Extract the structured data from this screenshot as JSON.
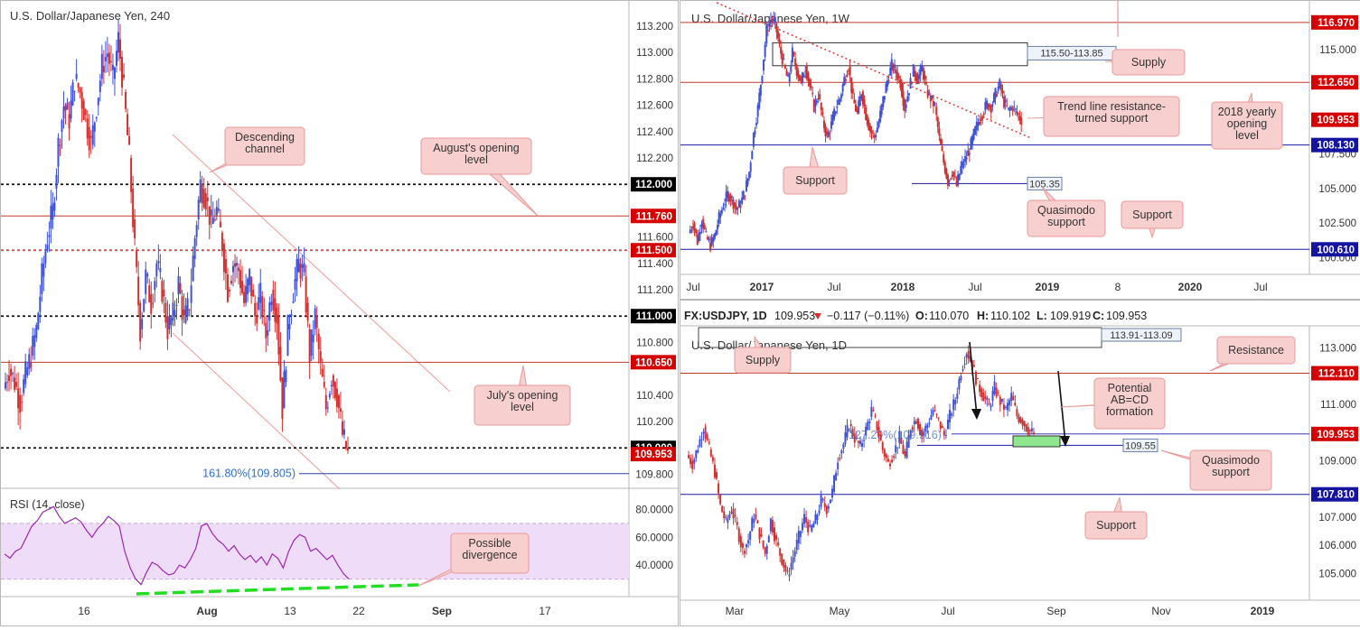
{
  "colors": {
    "bull": "#3f51d8",
    "bear": "#d32f2f",
    "black_label": "#000000",
    "red_label": "#d50000",
    "blue_label": "#1414a0",
    "callout_fill": "#f7cfcf",
    "callout_border": "#e89a9a",
    "rsi_band": "#efdcf8",
    "rsi_line": "#9c27b0",
    "divergence": "#22dd22",
    "zone_green": "#8ee68e"
  },
  "chart_data": [
    {
      "id": "usdjpy-h4",
      "type": "candlestick",
      "title": "U.S. Dollar/Japanese Yen, 240",
      "x_tick_labels": [
        "16",
        "Aug",
        "13",
        "22",
        "Sep",
        "17"
      ],
      "y_tick_labels": [
        "113.200",
        "113.000",
        "112.800",
        "112.600",
        "112.400",
        "112.200",
        "111.600",
        "111.400",
        "111.200",
        "110.800",
        "110.400",
        "110.200",
        "109.800"
      ],
      "ylim": [
        109.8,
        113.2
      ],
      "price_levels": [
        {
          "value": 112.0,
          "label": "112.000",
          "style": "black-dotted"
        },
        {
          "value": 111.76,
          "label": "111.760",
          "style": "red-solid"
        },
        {
          "value": 111.5,
          "label": "111.500",
          "style": "red-dotted"
        },
        {
          "value": 111.0,
          "label": "111.000",
          "style": "black-dotted"
        },
        {
          "value": 110.65,
          "label": "110.650",
          "style": "red-solid"
        },
        {
          "value": 110.0,
          "label": "110.000",
          "style": "black-dotted"
        },
        {
          "value": 109.953,
          "label": "109.953",
          "style": "last-price"
        }
      ],
      "fib_label": "161.80%(109.805)",
      "fib_value": 109.805,
      "annotations": [
        "Descending channel",
        "August's opening level",
        "July's opening level"
      ],
      "close_path": [
        110.45,
        110.6,
        110.5,
        110.35,
        110.55,
        110.7,
        110.9,
        111.3,
        111.6,
        111.8,
        112.3,
        112.6,
        112.5,
        112.8,
        112.7,
        112.5,
        112.3,
        112.6,
        112.9,
        113.0,
        112.8,
        113.1,
        112.7,
        112.2,
        111.5,
        110.9,
        111.3,
        111.1,
        111.4,
        111.2,
        110.9,
        111.0,
        111.25,
        110.95,
        111.1,
        111.6,
        112.0,
        111.9,
        111.7,
        111.8,
        111.55,
        111.2,
        111.4,
        111.35,
        111.1,
        111.3,
        111.0,
        111.15,
        110.85,
        111.2,
        111.0,
        110.3,
        110.9,
        111.2,
        111.4,
        111.3,
        110.7,
        111.0,
        110.6,
        110.3,
        110.55,
        110.4,
        110.1,
        109.95
      ],
      "rsi": {
        "label": "RSI (14, close)",
        "ylim": [
          20,
          90
        ],
        "y_tick_labels": [
          "80.0000",
          "60.0000",
          "40.0000"
        ],
        "overbought": 70,
        "oversold": 30,
        "values": [
          48,
          45,
          50,
          52,
          60,
          68,
          72,
          78,
          80,
          82,
          75,
          70,
          72,
          74,
          71,
          65,
          60,
          66,
          70,
          75,
          72,
          68,
          50,
          38,
          30,
          26,
          35,
          42,
          40,
          36,
          33,
          34,
          40,
          38,
          44,
          52,
          68,
          70,
          63,
          58,
          55,
          50,
          54,
          48,
          44,
          47,
          42,
          46,
          40,
          48,
          45,
          38,
          50,
          58,
          62,
          60,
          50,
          52,
          48,
          44,
          47,
          40,
          34,
          30
        ]
      },
      "rsi_annotation": "Possible divergence"
    },
    {
      "id": "usdjpy-weekly",
      "type": "candlestick",
      "title": "U.S. Dollar/Japanese Yen, 1W",
      "x_tick_labels": [
        "Jul",
        "2017",
        "Jul",
        "2018",
        "Jul",
        "2019",
        "8",
        "2020",
        "Jul"
      ],
      "y_tick_labels": [
        "115.000",
        "112.500",
        "107.500",
        "105.000",
        "102.500",
        "100.000"
      ],
      "ylim": [
        99,
        118
      ],
      "price_levels": [
        {
          "value": 116.97,
          "label": "116.970",
          "style": "red-solid"
        },
        {
          "value": 112.65,
          "label": "112.650",
          "style": "red-solid"
        },
        {
          "value": 109.953,
          "label": "109.953",
          "style": "last-price"
        },
        {
          "value": 108.13,
          "label": "108.130",
          "style": "blue-solid"
        },
        {
          "value": 100.61,
          "label": "100.610",
          "style": "blue-solid"
        }
      ],
      "zone_label": "115.50-113.85",
      "zone": [
        113.85,
        115.5
      ],
      "level_105_label": "105.35",
      "annotations": [
        "Supply",
        "Trend line resistance-turned support",
        "2018 yearly opening level",
        "Support",
        "Quasimodo support",
        "Support"
      ],
      "close_path": [
        101.8,
        102.5,
        101.2,
        102.8,
        101.5,
        100.9,
        101.6,
        102.9,
        103.8,
        104.6,
        104.2,
        103.5,
        103.9,
        104.8,
        106.2,
        108.9,
        110.8,
        113.5,
        116.4,
        117.2,
        116.9,
        115.2,
        113.9,
        112.7,
        114.8,
        113.5,
        112.6,
        113.8,
        112.4,
        110.9,
        111.8,
        109.9,
        108.7,
        109.6,
        110.8,
        111.5,
        112.9,
        113.8,
        111.4,
        110.4,
        112.0,
        110.3,
        109.2,
        108.7,
        109.8,
        111.4,
        112.8,
        113.9,
        113.4,
        112.6,
        110.8,
        112.2,
        113.5,
        112.9,
        113.7,
        112.1,
        111.5,
        110.9,
        108.6,
        106.9,
        105.5,
        106.2,
        105.2,
        106.5,
        107.1,
        107.8,
        108.9,
        109.8,
        110.4,
        111.1,
        110.9,
        111.8,
        112.5,
        111.2,
        110.6,
        110.9,
        110.4,
        109.95
      ]
    },
    {
      "id": "usdjpy-daily",
      "type": "candlestick",
      "title": "U.S. Dollar/Japanese Yen, 1D",
      "header": "FX:USDJPY, 1D",
      "ohlc": {
        "last": "109.953",
        "change": "−0.117 (−0.11%)",
        "O": "110.070",
        "H": "110.102",
        "L": "109.919",
        "C": "109.953"
      },
      "x_tick_labels": [
        "Mar",
        "May",
        "Jul",
        "Sep",
        "Nov",
        "2019"
      ],
      "y_tick_labels": [
        "113.000",
        "111.000",
        "109.000",
        "107.000",
        "106.000",
        "105.000"
      ],
      "ylim": [
        104.5,
        113.6
      ],
      "price_levels": [
        {
          "value": 112.11,
          "label": "112.110",
          "style": "red-solid"
        },
        {
          "value": 109.953,
          "label": "109.953",
          "style": "last-price"
        },
        {
          "value": 107.81,
          "label": "107.810",
          "style": "blue-solid"
        }
      ],
      "zone_label": "113.91-113.09",
      "fib_label": "127.20%(109.916)",
      "level_109_55_label": "109.55",
      "annotations": [
        "Supply",
        "Resistance",
        "Potential AB=CD formation",
        "Quasimodo support",
        "Support"
      ],
      "close_path": [
        109.2,
        108.9,
        109.5,
        110.2,
        109.4,
        108.6,
        107.4,
        106.8,
        107.3,
        106.6,
        105.8,
        106.2,
        107.1,
        106.4,
        105.7,
        106.9,
        106.1,
        105.5,
        104.9,
        105.6,
        106.3,
        107.0,
        106.5,
        106.9,
        107.6,
        107.3,
        107.9,
        109.1,
        109.6,
        110.3,
        109.8,
        109.5,
        110.1,
        110.8,
        110.2,
        109.4,
        108.9,
        109.3,
        109.8,
        109.1,
        110.2,
        110.5,
        109.9,
        110.3,
        110.8,
        110.4,
        109.9,
        110.6,
        111.2,
        112.2,
        112.9,
        112.4,
        111.7,
        111.3,
        110.9,
        111.6,
        111.1,
        110.8,
        111.3,
        110.6,
        110.4,
        110.1,
        109.95
      ]
    }
  ]
}
